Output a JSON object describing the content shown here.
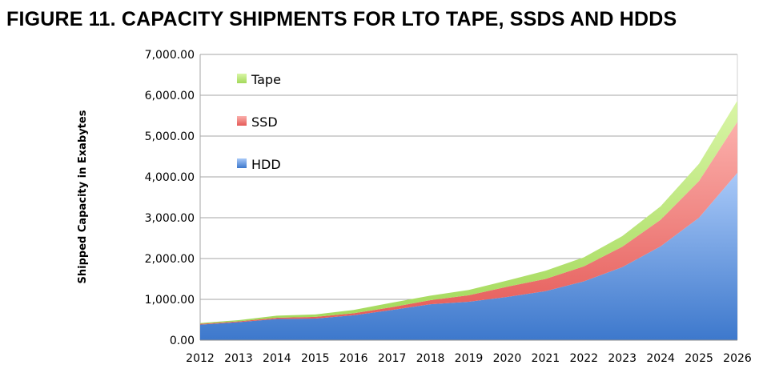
{
  "title": "FIGURE 11.  CAPACITY SHIPMENTS FOR LTO TAPE, SSDS AND HDDS",
  "chart_data": {
    "type": "area",
    "stacked": true,
    "title": "FIGURE 11.  CAPACITY SHIPMENTS FOR LTO TAPE, SSDS AND HDDS",
    "xlabel": "",
    "ylabel": "Shipped Capacity in Exabytes",
    "ylim": [
      0,
      7000
    ],
    "y_ticks": [
      "0.00",
      "1,000.00",
      "2,000.00",
      "3,000.00",
      "4,000.00",
      "5,000.00",
      "6,000.00",
      "7,000.00"
    ],
    "x": [
      "2012",
      "2013",
      "2014",
      "2015",
      "2016",
      "2017",
      "2018",
      "2019",
      "2020",
      "2021",
      "2022",
      "2023",
      "2024",
      "2025",
      "2026"
    ],
    "grid": true,
    "legend_position": "top-left",
    "series": [
      {
        "name": "HDD",
        "color": "#5b8fd8",
        "values": [
          380,
          440,
          520,
          530,
          610,
          740,
          880,
          940,
          1060,
          1200,
          1440,
          1790,
          2300,
          3000,
          4100
        ]
      },
      {
        "name": "SSD",
        "color": "#ee7b78",
        "values": [
          20,
          20,
          30,
          40,
          50,
          70,
          100,
          160,
          250,
          300,
          370,
          500,
          650,
          900,
          1250
        ]
      },
      {
        "name": "Tape",
        "color": "#b5e470",
        "values": [
          20,
          30,
          50,
          60,
          80,
          110,
          110,
          130,
          150,
          200,
          220,
          260,
          330,
          420,
          520
        ]
      }
    ]
  }
}
